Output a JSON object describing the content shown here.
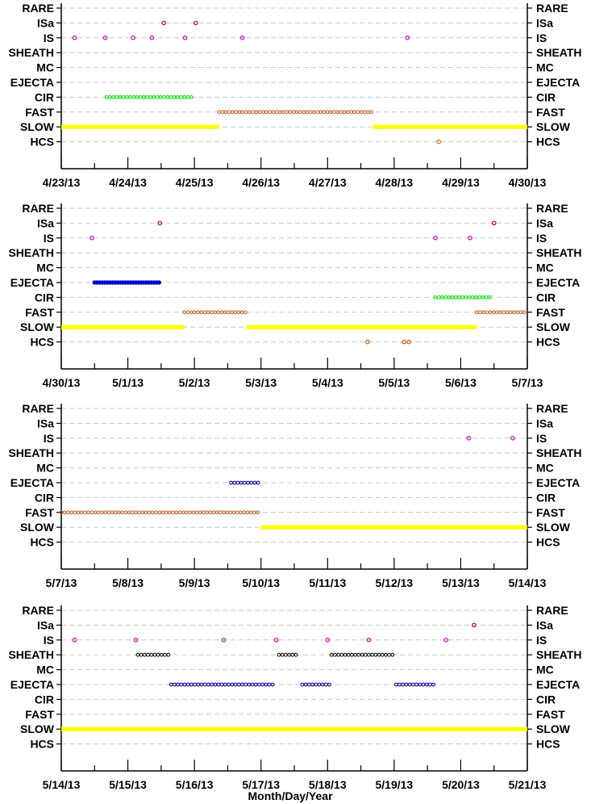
{
  "chart_data": {
    "type": "scatter",
    "xlabel": "Month/Day/Year",
    "categories": [
      "RARE",
      "ISa",
      "IS",
      "SHEATH",
      "MC",
      "EJECTA",
      "CIR",
      "FAST",
      "SLOW",
      "HCS"
    ],
    "colors": {
      "SLOW": "#ffff00",
      "FAST": "#c06020",
      "CIR": "#00e000",
      "EJECTA_dense": "#0000cc",
      "EJECTA": "#000099",
      "SHEATH": "#000000",
      "IS": "#cc00cc",
      "ISa": "#cc0000",
      "HCS": "#e06000"
    },
    "panels": [
      {
        "x_ticks": [
          "4/23/13",
          "4/24/13",
          "4/25/13",
          "4/26/13",
          "4/27/13",
          "4/28/13",
          "4/29/13",
          "4/30/13"
        ],
        "xlim": [
          0,
          7
        ],
        "events": [
          {
            "cat": "SLOW",
            "start": 0.0,
            "end": 2.37,
            "style": "dense"
          },
          {
            "cat": "SLOW",
            "start": 4.68,
            "end": 7.0,
            "style": "dense"
          },
          {
            "cat": "FAST",
            "start": 2.37,
            "end": 4.68,
            "style": "open"
          },
          {
            "cat": "CIR",
            "start": 0.68,
            "end": 2.0,
            "style": "open"
          },
          {
            "cat": "IS",
            "points": [
              0.2,
              0.66,
              1.08,
              1.36,
              1.86,
              2.72,
              5.2
            ]
          },
          {
            "cat": "ISa",
            "points": [
              1.54,
              2.02
            ]
          },
          {
            "cat": "HCS",
            "points": [
              5.67
            ]
          }
        ]
      },
      {
        "x_ticks": [
          "4/30/13",
          "5/1/13",
          "5/2/13",
          "5/3/13",
          "5/4/13",
          "5/5/13",
          "5/6/13",
          "5/7/13"
        ],
        "xlim": [
          0,
          7
        ],
        "events": [
          {
            "cat": "SLOW",
            "start": 0.0,
            "end": 1.85,
            "style": "dense"
          },
          {
            "cat": "SLOW",
            "start": 2.78,
            "end": 6.24,
            "style": "dense"
          },
          {
            "cat": "FAST",
            "start": 1.85,
            "end": 2.78,
            "style": "open"
          },
          {
            "cat": "FAST",
            "start": 6.24,
            "end": 7.0,
            "style": "open"
          },
          {
            "cat": "EJECTA",
            "start": 0.5,
            "end": 1.48,
            "style": "dense"
          },
          {
            "cat": "CIR",
            "start": 5.62,
            "end": 6.48,
            "style": "open"
          },
          {
            "cat": "IS",
            "points": [
              0.46,
              5.62,
              6.14
            ]
          },
          {
            "cat": "ISa",
            "points": [
              1.48,
              6.5
            ]
          },
          {
            "cat": "HCS",
            "points": [
              4.6,
              5.15,
              5.22
            ]
          }
        ]
      },
      {
        "x_ticks": [
          "5/7/13",
          "5/8/13",
          "5/9/13",
          "5/10/13",
          "5/11/13",
          "5/12/13",
          "5/13/13",
          "5/14/13"
        ],
        "xlim": [
          0,
          7
        ],
        "events": [
          {
            "cat": "FAST",
            "start": 0.0,
            "end": 3.0,
            "style": "open"
          },
          {
            "cat": "SLOW",
            "start": 3.0,
            "end": 7.0,
            "style": "dense"
          },
          {
            "cat": "EJECTA",
            "start": 2.55,
            "end": 3.0,
            "style": "open"
          },
          {
            "cat": "IS",
            "points": [
              6.12,
              6.78
            ]
          }
        ]
      },
      {
        "x_ticks": [
          "5/14/13",
          "5/15/13",
          "5/16/13",
          "5/17/13",
          "5/18/13",
          "5/19/13",
          "5/20/13",
          "5/21/13"
        ],
        "xlim": [
          0,
          7
        ],
        "events": [
          {
            "cat": "SLOW",
            "start": 0.0,
            "end": 7.0,
            "style": "dense"
          },
          {
            "cat": "SHEATH",
            "start": 1.15,
            "end": 1.62,
            "style": "open"
          },
          {
            "cat": "SHEATH",
            "start": 3.27,
            "end": 3.57,
            "style": "open"
          },
          {
            "cat": "SHEATH",
            "start": 4.06,
            "end": 4.98,
            "style": "open"
          },
          {
            "cat": "EJECTA",
            "start": 1.65,
            "end": 3.2,
            "style": "open"
          },
          {
            "cat": "EJECTA",
            "start": 3.62,
            "end": 4.03,
            "style": "open"
          },
          {
            "cat": "EJECTA",
            "start": 5.03,
            "end": 5.6,
            "style": "open"
          },
          {
            "cat": "IS",
            "points": [
              0.2,
              1.12,
              2.44,
              3.23,
              4.0,
              4.62,
              5.78
            ]
          },
          {
            "cat": "ISa",
            "points": [
              6.2
            ]
          }
        ]
      }
    ]
  }
}
